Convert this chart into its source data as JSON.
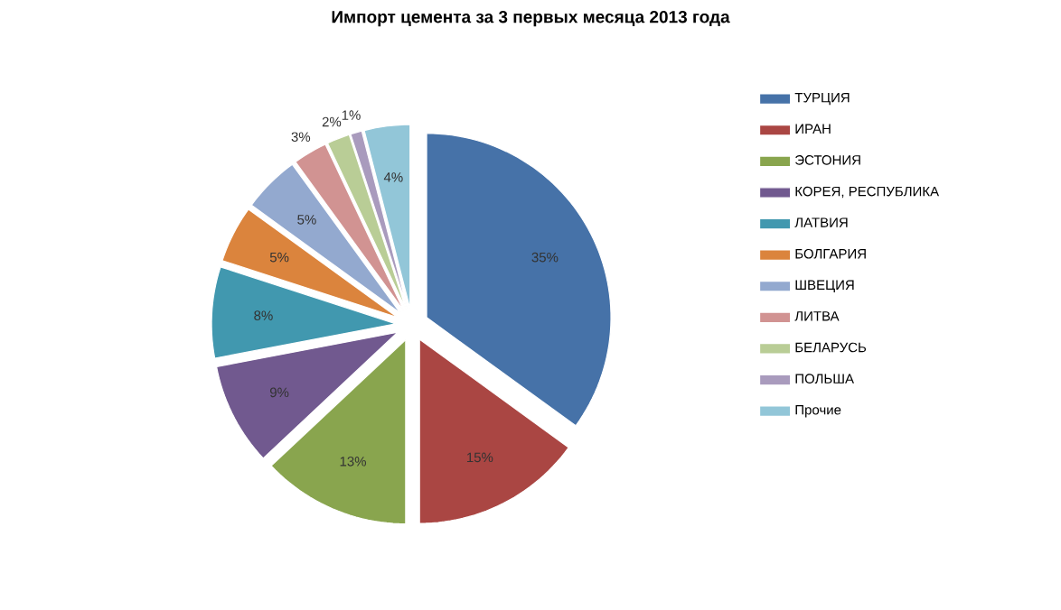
{
  "chart_data": {
    "type": "pie",
    "title": "Импорт цемента за 3 первых месяца 2013 года",
    "categories": [
      "ТУРЦИЯ",
      "ИРАН",
      "ЭСТОНИЯ",
      "КОРЕЯ, РЕСПУБЛИКА",
      "ЛАТВИЯ",
      "БОЛГАРИЯ",
      "ШВЕЦИЯ",
      "ЛИТВА",
      "БЕЛАРУСЬ",
      "ПОЛЬША",
      "Прочие"
    ],
    "values": [
      35,
      15,
      13,
      9,
      8,
      5,
      5,
      3,
      2,
      1,
      4
    ],
    "value_labels": [
      "35%",
      "15%",
      "13%",
      "9%",
      "8%",
      "5%",
      "5%",
      "3%",
      "2%",
      "1%",
      "4%"
    ],
    "colors": [
      "#4672A8",
      "#AA4643",
      "#89A54E",
      "#71598F",
      "#4198AF",
      "#DB843D",
      "#93A9CF",
      "#D19392",
      "#B9CD96",
      "#A99BBD",
      "#92C6D8"
    ],
    "legend": "right"
  }
}
